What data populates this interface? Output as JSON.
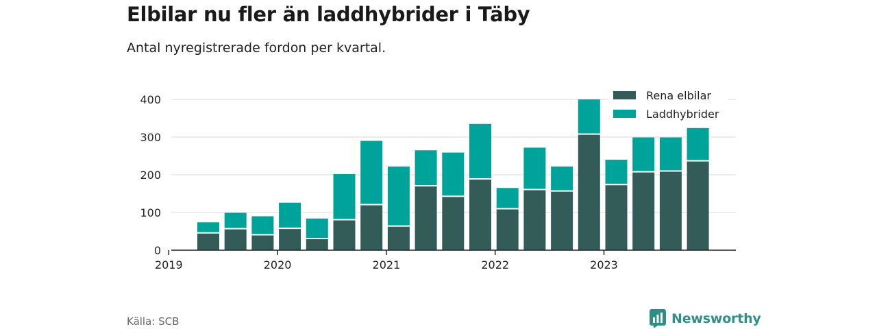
{
  "title": "Elbilar nu fler än laddhybrider i Täby",
  "subtitle": "Antal nyregistrerade fordon per kvartal.",
  "source": "Källa: SCB",
  "brand": "Newsworthy",
  "colors": {
    "elbilar": "#335c58",
    "laddhybrider": "#00a39a",
    "grid": "#d9d9d9",
    "axis": "#222222",
    "brand": "#2f8f86"
  },
  "chart_data": {
    "type": "bar",
    "stacked": true,
    "title": "Elbilar nu fler än laddhybrider i Täby",
    "subtitle": "Antal nyregistrerade fordon per kvartal.",
    "xlabel": "",
    "ylabel": "",
    "ylim": [
      0,
      400
    ],
    "yticks": [
      0,
      100,
      200,
      300,
      400
    ],
    "year_labels": [
      "2019",
      "2020",
      "2021",
      "2022",
      "2023"
    ],
    "categories": [
      "2019 Q2",
      "2019 Q3",
      "2019 Q4",
      "2020 Q1",
      "2020 Q2",
      "2020 Q3",
      "2020 Q4",
      "2021 Q1",
      "2021 Q2",
      "2021 Q3",
      "2021 Q4",
      "2022 Q1",
      "2022 Q2",
      "2022 Q3",
      "2022 Q4",
      "2023 Q1",
      "2023 Q2",
      "2023 Q3",
      "2023 Q4"
    ],
    "legend_position": "top-right",
    "series": [
      {
        "name": "Rena elbilar",
        "values": [
          46,
          57,
          41,
          58,
          31,
          81,
          121,
          64,
          171,
          143,
          189,
          110,
          161,
          157,
          308,
          174,
          208,
          210,
          237
        ]
      },
      {
        "name": "Laddhybrider",
        "values": [
          28,
          42,
          49,
          68,
          53,
          121,
          169,
          158,
          94,
          116,
          146,
          55,
          111,
          65,
          92,
          66,
          91,
          89,
          87
        ]
      }
    ]
  }
}
